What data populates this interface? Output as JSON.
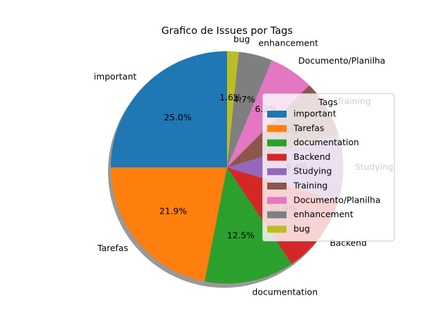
{
  "chart_data": {
    "type": "pie",
    "title": "Grafico de Issues por Tags",
    "legend_title": "Tags",
    "legend_position": "right",
    "shadow": true,
    "start_angle_deg": 90,
    "direction": "counterclockwise",
    "slices": [
      {
        "label": "important",
        "value": 25.0,
        "pct_text": "25.0%",
        "color": "#1f77b4"
      },
      {
        "label": "Tarefas",
        "value": 21.9,
        "pct_text": "21.9%",
        "color": "#ff7f0e"
      },
      {
        "label": "documentation",
        "value": 12.5,
        "pct_text": "12.5%",
        "color": "#2ca02c"
      },
      {
        "label": "Backend",
        "value": 10.9,
        "pct_text": "10.9%",
        "color": "#d62728"
      },
      {
        "label": "Studying",
        "value": 9.4,
        "pct_text": "9.4%",
        "color": "#9467bd"
      },
      {
        "label": "Training",
        "value": 7.8,
        "pct_text": "7.8%",
        "color": "#8c564b"
      },
      {
        "label": "Documento/Planilha",
        "value": 6.2,
        "pct_text": "6.2%",
        "color": "#e377c2"
      },
      {
        "label": "enhancement",
        "value": 4.7,
        "pct_text": "4.7%",
        "color": "#7f7f7f"
      },
      {
        "label": "bug",
        "value": 1.6,
        "pct_text": "1.6%",
        "color": "#bcbd22"
      }
    ]
  }
}
